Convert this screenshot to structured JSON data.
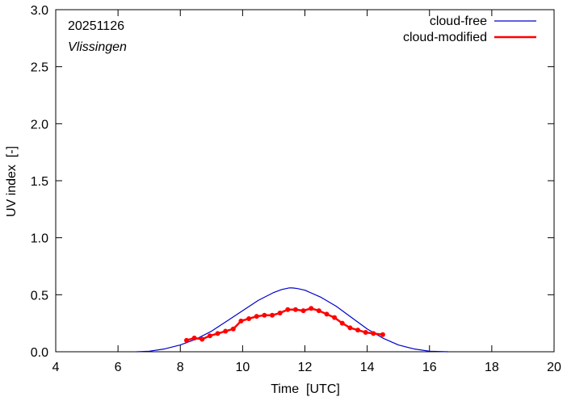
{
  "chart_data": {
    "type": "line",
    "date_label": "20251126",
    "location": "Vlissingen",
    "xlabel": "Time  [UTC]",
    "ylabel": "UV index  [-]",
    "xlim": [
      4,
      20
    ],
    "ylim": [
      0,
      3.0
    ],
    "x_ticks": [
      4,
      6,
      8,
      10,
      12,
      14,
      16,
      18,
      20
    ],
    "x_tick_labels": [
      "4",
      "6",
      "8",
      "10",
      "12",
      "14",
      "16",
      "18",
      "20"
    ],
    "y_ticks": [
      0,
      0.5,
      1.0,
      1.5,
      2.0,
      2.5,
      3.0
    ],
    "y_tick_labels": [
      "0.0",
      "0.5",
      "1.0",
      "1.5",
      "2.0",
      "2.5",
      "3.0"
    ],
    "grid": false,
    "legend_position": "top-right",
    "series": [
      {
        "name": "cloud-free",
        "color": "#0000cc",
        "style": "line",
        "x": [
          6.6,
          7.0,
          7.5,
          8.0,
          8.5,
          9.0,
          9.5,
          10.0,
          10.5,
          11.0,
          11.25,
          11.5,
          11.6,
          11.75,
          12.0,
          12.5,
          13.0,
          13.5,
          14.0,
          14.5,
          15.0,
          15.5,
          16.0,
          16.6
        ],
        "y": [
          0.0,
          0.005,
          0.025,
          0.06,
          0.11,
          0.18,
          0.27,
          0.36,
          0.45,
          0.52,
          0.545,
          0.56,
          0.56,
          0.555,
          0.54,
          0.48,
          0.4,
          0.3,
          0.2,
          0.12,
          0.06,
          0.025,
          0.005,
          0.0
        ]
      },
      {
        "name": "cloud-modified",
        "color": "#ff0000",
        "style": "line-markers",
        "x": [
          8.2,
          8.45,
          8.7,
          8.95,
          9.2,
          9.45,
          9.7,
          9.95,
          10.2,
          10.45,
          10.7,
          10.95,
          11.2,
          11.45,
          11.7,
          11.95,
          12.2,
          12.45,
          12.7,
          12.95,
          13.2,
          13.45,
          13.7,
          13.95,
          14.2,
          14.5
        ],
        "y": [
          0.1,
          0.12,
          0.11,
          0.14,
          0.16,
          0.18,
          0.2,
          0.27,
          0.29,
          0.31,
          0.32,
          0.32,
          0.34,
          0.37,
          0.37,
          0.36,
          0.38,
          0.36,
          0.33,
          0.3,
          0.25,
          0.21,
          0.19,
          0.17,
          0.16,
          0.15
        ]
      }
    ]
  }
}
